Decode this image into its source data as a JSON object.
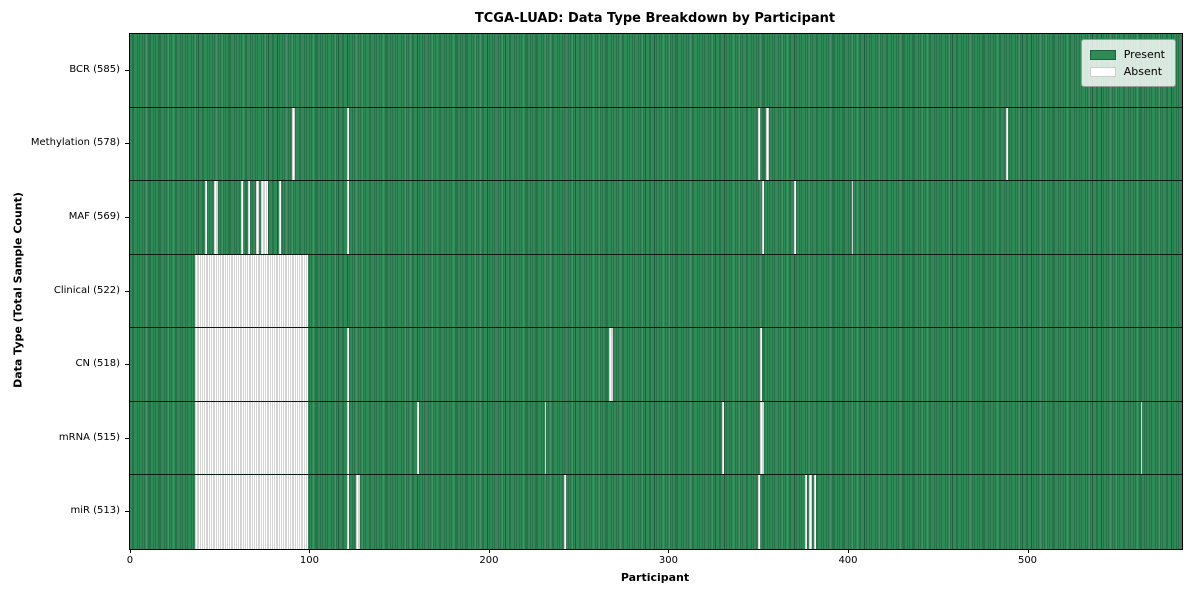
{
  "chart_data": {
    "type": "heatmap",
    "title": "TCGA-LUAD: Data Type Breakdown by Participant",
    "xlabel": "Participant",
    "ylabel": "Data Type (Total Sample Count)",
    "x_ticks": [
      0,
      100,
      200,
      300,
      400,
      500
    ],
    "x_min": -0.5,
    "x_max": 585.5,
    "total_participants": 585,
    "legend": [
      {
        "label": "Present",
        "color": "#2e8b57"
      },
      {
        "label": "Absent",
        "color": "#ffffff"
      }
    ],
    "colors": {
      "present": "#2e8b57",
      "present_edge": "#1d5e3c",
      "present_highlight": "rgba(255,255,255,0.18)",
      "absent": "#ffffff",
      "absent_edge": "#a8a8a8",
      "row_divider": "rgba(0,0,0,0.8)",
      "axis": "#000000"
    },
    "rows": [
      {
        "data_type": "BCR",
        "sample_count": 585,
        "label": "BCR (585)",
        "absent_segments": []
      },
      {
        "data_type": "Methylation",
        "sample_count": 578,
        "label": "Methylation (578)",
        "absent_segments": [
          [
            90,
            2
          ],
          [
            121,
            1
          ],
          [
            350,
            1
          ],
          [
            354,
            2
          ],
          [
            488,
            1
          ]
        ]
      },
      {
        "data_type": "MAF",
        "sample_count": 569,
        "label": "MAF (569)",
        "absent_segments": [
          [
            42,
            1
          ],
          [
            47,
            2
          ],
          [
            62,
            1
          ],
          [
            66,
            1
          ],
          [
            70,
            2
          ],
          [
            73,
            4
          ],
          [
            83,
            1
          ],
          [
            121,
            1
          ],
          [
            352,
            1
          ],
          [
            370,
            1
          ],
          [
            402,
            1
          ]
        ]
      },
      {
        "data_type": "Clinical",
        "sample_count": 522,
        "label": "Clinical (522)",
        "absent_segments": [
          [
            36,
            63
          ]
        ]
      },
      {
        "data_type": "CN",
        "sample_count": 518,
        "label": "CN (518)",
        "absent_segments": [
          [
            36,
            63
          ],
          [
            121,
            1
          ],
          [
            267,
            2
          ],
          [
            351,
            1
          ]
        ]
      },
      {
        "data_type": "mRNA",
        "sample_count": 515,
        "label": "mRNA (515)",
        "absent_segments": [
          [
            36,
            63
          ],
          [
            121,
            1
          ],
          [
            160,
            1
          ],
          [
            231,
            1
          ],
          [
            330,
            1
          ],
          [
            351,
            2
          ],
          [
            563,
            1
          ]
        ]
      },
      {
        "data_type": "miR",
        "sample_count": 513,
        "label": "miR (513)",
        "absent_segments": [
          [
            36,
            63
          ],
          [
            121,
            1
          ],
          [
            126,
            2
          ],
          [
            242,
            1
          ],
          [
            350,
            1
          ],
          [
            376,
            1
          ],
          [
            378,
            2
          ],
          [
            381,
            1
          ]
        ]
      }
    ]
  }
}
